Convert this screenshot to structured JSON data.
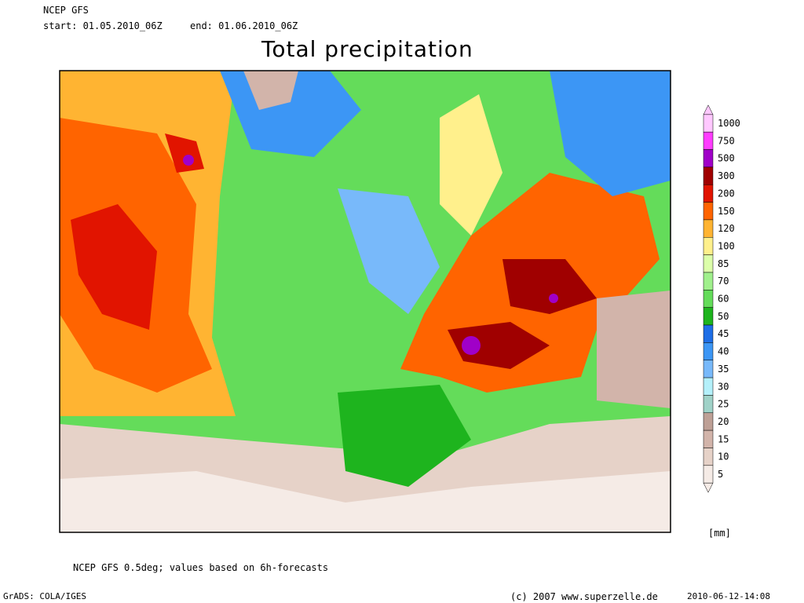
{
  "header": {
    "model": "NCEP GFS",
    "start": "start: 01.05.2010_06Z",
    "end": "end: 01.06.2010_06Z",
    "title": "Total precipitation"
  },
  "legend": {
    "unit": "[mm]",
    "levels": [
      {
        "value": 1000,
        "color": "#ffc8ff"
      },
      {
        "value": 750,
        "color": "#ff3cff"
      },
      {
        "value": 500,
        "color": "#a000c8"
      },
      {
        "value": 300,
        "color": "#a00000"
      },
      {
        "value": 200,
        "color": "#e11400"
      },
      {
        "value": 150,
        "color": "#ff6400"
      },
      {
        "value": 120,
        "color": "#ffb432"
      },
      {
        "value": 100,
        "color": "#fff08c"
      },
      {
        "value": 85,
        "color": "#dcffaa"
      },
      {
        "value": 70,
        "color": "#a0f08c"
      },
      {
        "value": 60,
        "color": "#64dc5a"
      },
      {
        "value": 50,
        "color": "#1eb41e"
      },
      {
        "value": 45,
        "color": "#1e6ee6"
      },
      {
        "value": 40,
        "color": "#3c96f5"
      },
      {
        "value": 35,
        "color": "#78b9fa"
      },
      {
        "value": 30,
        "color": "#b4f0fa"
      },
      {
        "value": 25,
        "color": "#a0d2c8"
      },
      {
        "value": 20,
        "color": "#bea096"
      },
      {
        "value": 15,
        "color": "#d2b4aa"
      },
      {
        "value": 10,
        "color": "#e6d2c8"
      },
      {
        "value": 5,
        "color": "#f5ebe6"
      }
    ]
  },
  "footer": {
    "note": "NCEP GFS 0.5deg; values based on 6h-forecasts",
    "software": "GrADS: COLA/IGES",
    "copyright": "(c) 2007 www.superzelle.de",
    "timestamp": "2010-06-12-14:08"
  }
}
